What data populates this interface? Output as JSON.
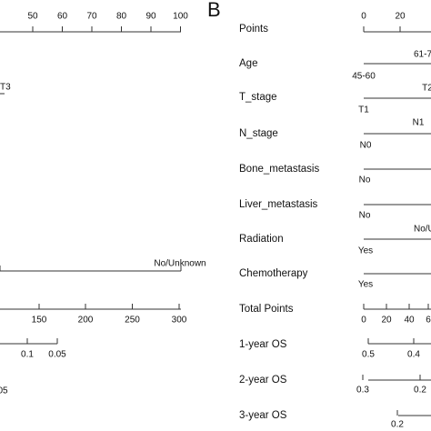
{
  "panel_a": {
    "points_ticks": [
      50,
      60,
      70,
      80,
      90,
      100
    ],
    "t_stage_label": "T3",
    "chemo_label": "No/Unknown",
    "total_ticks": [
      150,
      200,
      250,
      300
    ],
    "os1_ticks": [
      0.1,
      0.05
    ],
    "os2_tick": "05"
  },
  "panel_b": {
    "letter": "B",
    "rows": [
      "Points",
      "Age",
      "T_stage",
      "N_stage",
      "Bone_metastasis",
      "Liver_metastasis",
      "Radiation",
      "Chemotherapy",
      "Total Points",
      "1-year OS",
      "2-year OS",
      "3-year OS"
    ],
    "points_ticks": [
      "0",
      "20"
    ],
    "age": [
      "61-7",
      "45-60"
    ],
    "t_stage": [
      "T2",
      "T1"
    ],
    "n_stage": [
      "N1",
      "N0"
    ],
    "bone": "No",
    "liver": "No",
    "radiation": [
      "No/Un",
      "Yes"
    ],
    "chemo": "Yes",
    "total_ticks": [
      "0",
      "20",
      "40",
      "6"
    ],
    "os1_ticks": [
      0.5,
      0.4
    ],
    "os2_ticks": [
      0.3,
      0.2
    ],
    "os3_ticks": [
      0.2
    ]
  }
}
